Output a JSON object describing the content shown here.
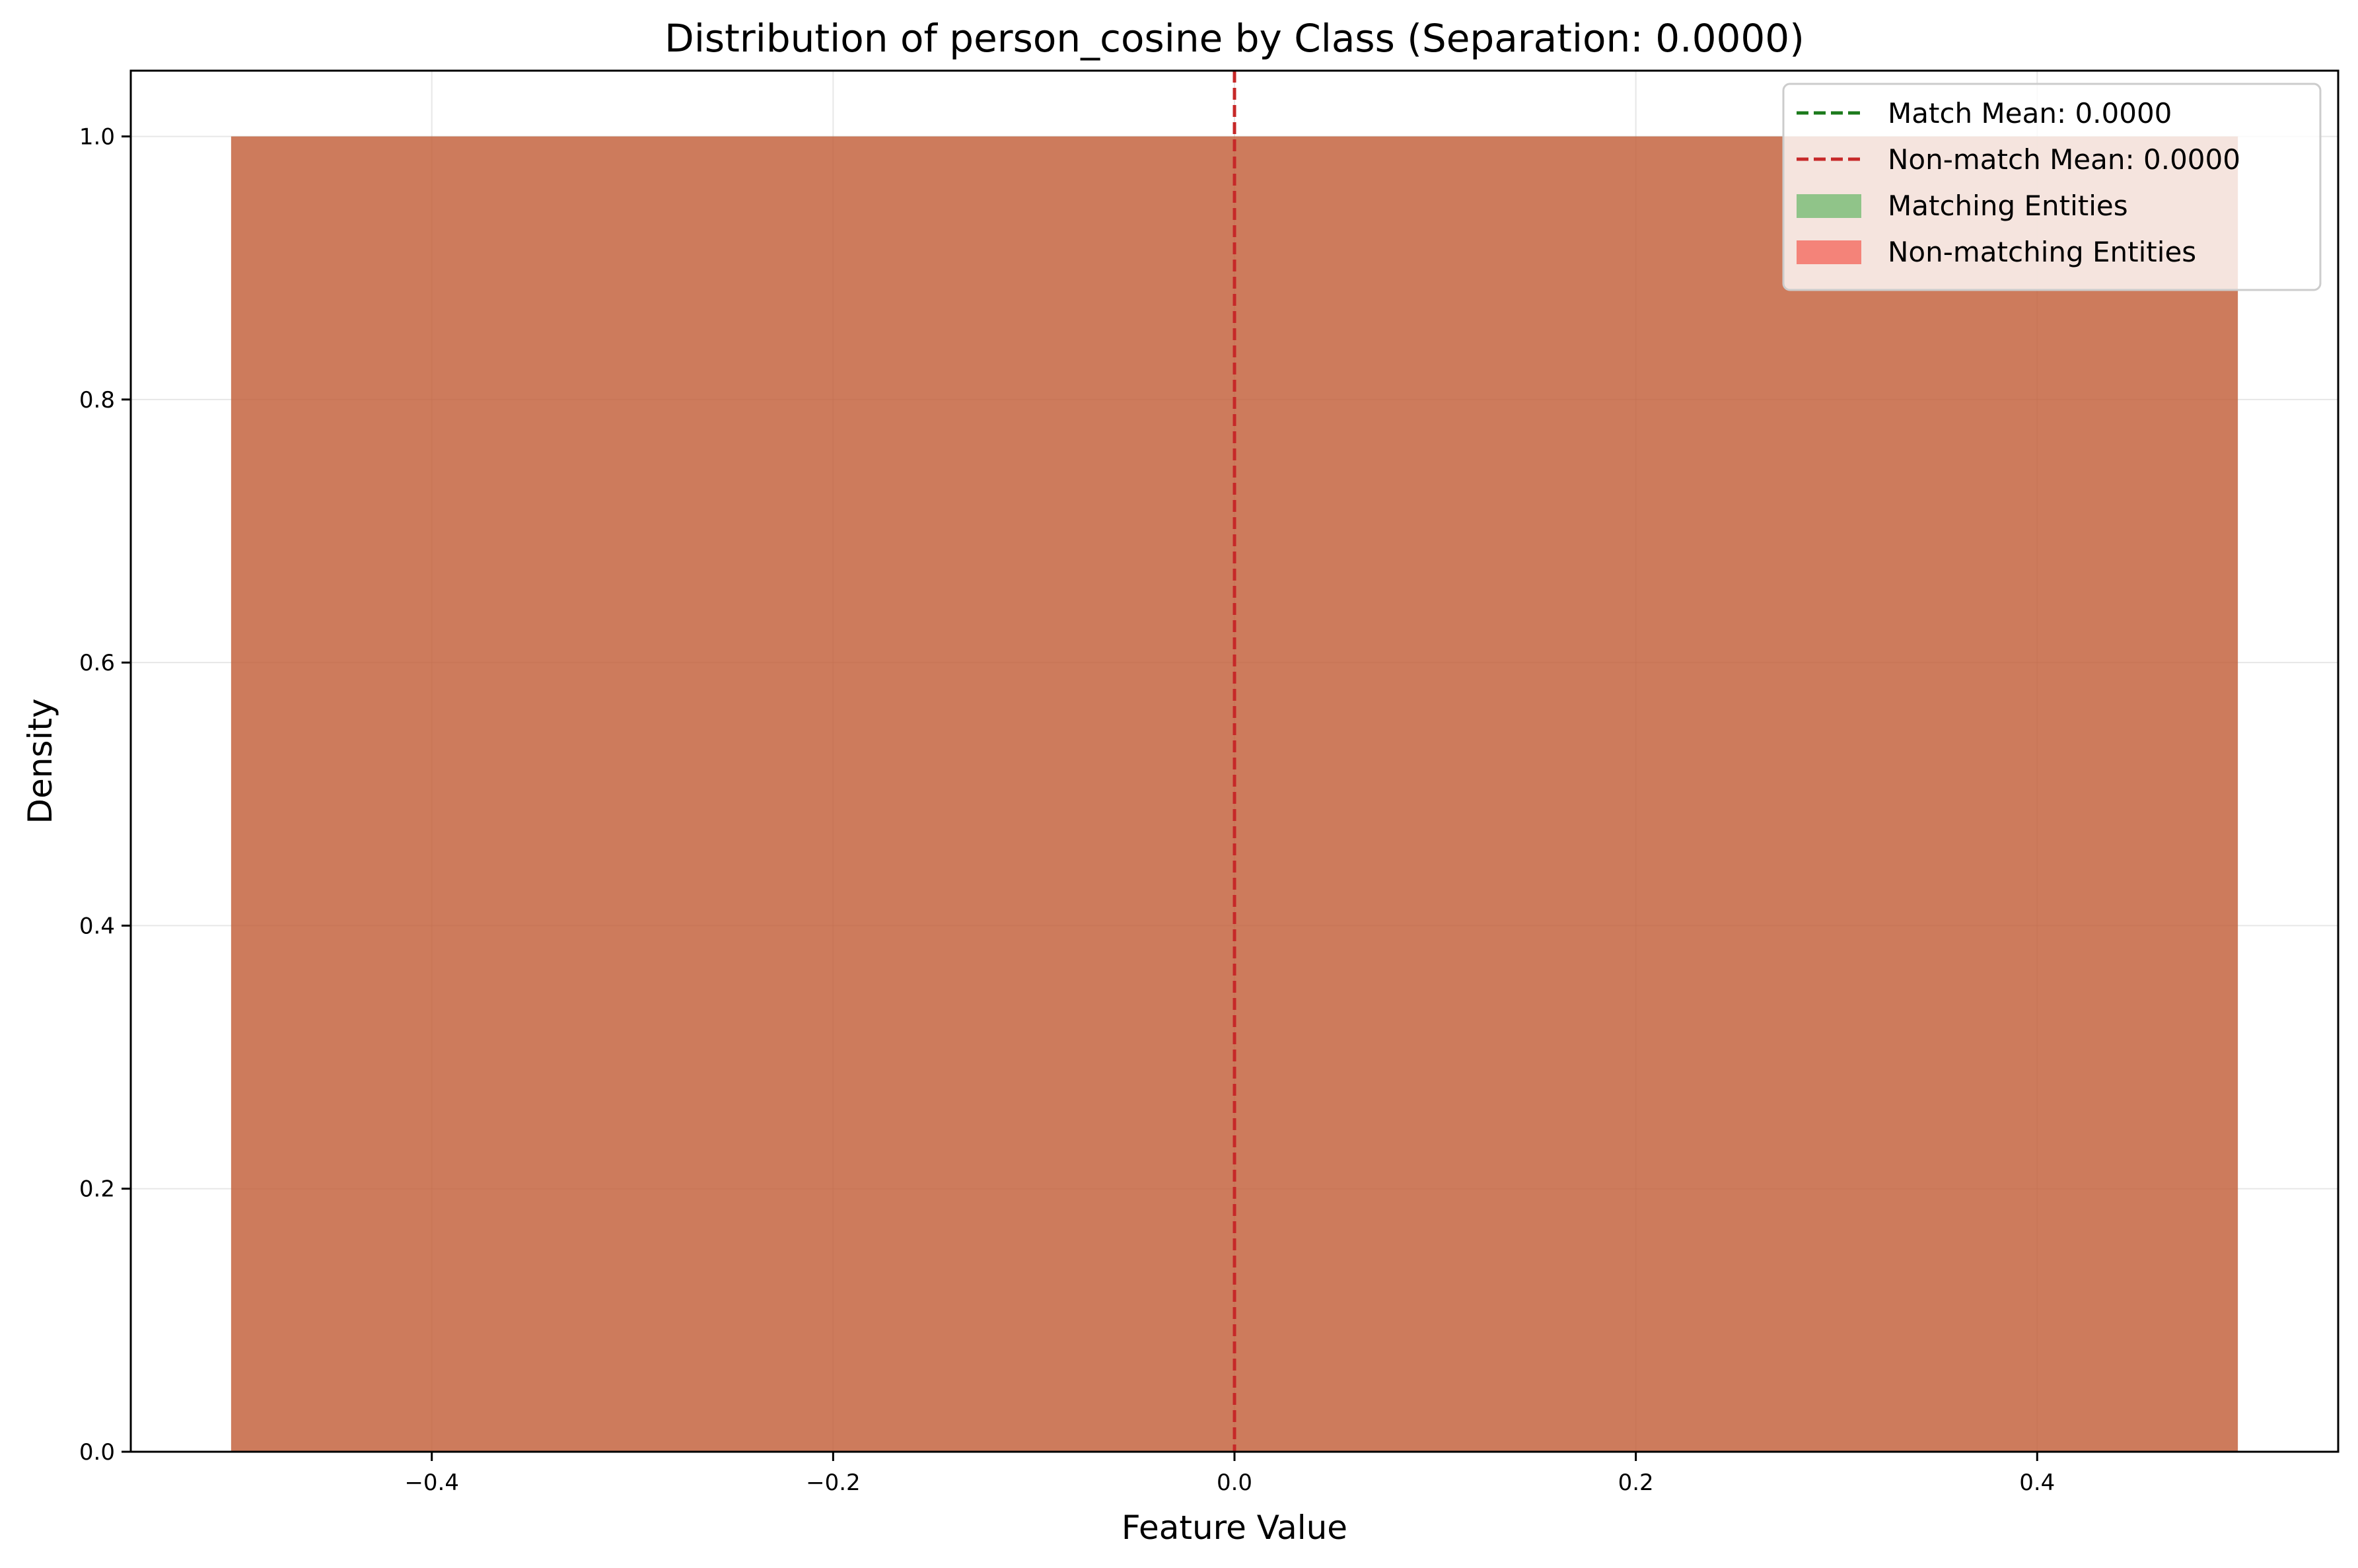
{
  "chart_data": {
    "type": "bar",
    "title": "Distribution of person_cosine by Class (Separation: 0.0000)",
    "xlabel": "Feature Value",
    "ylabel": "Density",
    "xlim": [
      -0.55,
      0.55
    ],
    "ylim": [
      0,
      1.05
    ],
    "grid": true,
    "legend_placement": "top-right",
    "xticks": [
      -0.4,
      -0.2,
      0.0,
      0.2,
      0.4
    ],
    "xtick_labels": [
      "−0.4",
      "−0.2",
      "0.0",
      "0.2",
      "0.4"
    ],
    "yticks": [
      0.0,
      0.2,
      0.4,
      0.6,
      0.8,
      1.0
    ],
    "ytick_labels": [
      "0.0",
      "0.2",
      "0.4",
      "0.6",
      "0.8",
      "1.0"
    ],
    "series": [
      {
        "name": "Matching Entities",
        "kind": "histogram",
        "color": "#4caf50",
        "alpha": 0.6,
        "bins": [
          {
            "x0": -0.5,
            "x1": 0.5,
            "density": 1.0
          }
        ]
      },
      {
        "name": "Non-matching Entities",
        "kind": "histogram",
        "color": "#f44336",
        "alpha": 0.6,
        "bins": [
          {
            "x0": -0.5,
            "x1": 0.5,
            "density": 1.0
          }
        ]
      }
    ],
    "reference_lines": [
      {
        "name": "Match Mean: 0.0000",
        "x": 0.0,
        "color": "#1b7a1b",
        "style": "dashed"
      },
      {
        "name": "Non-match Mean: 0.0000",
        "x": 0.0,
        "color": "#c62828",
        "style": "dashed"
      }
    ],
    "legend": [
      {
        "label": "Match Mean: 0.0000",
        "type": "line",
        "color": "#1b7a1b"
      },
      {
        "label": "Non-match Mean: 0.0000",
        "type": "line",
        "color": "#c62828"
      },
      {
        "label": "Matching Entities",
        "type": "patch",
        "color": "#4caf50",
        "alpha": 0.6
      },
      {
        "label": "Non-matching Entities",
        "type": "patch",
        "color": "#f44336",
        "alpha": 0.6
      }
    ]
  }
}
